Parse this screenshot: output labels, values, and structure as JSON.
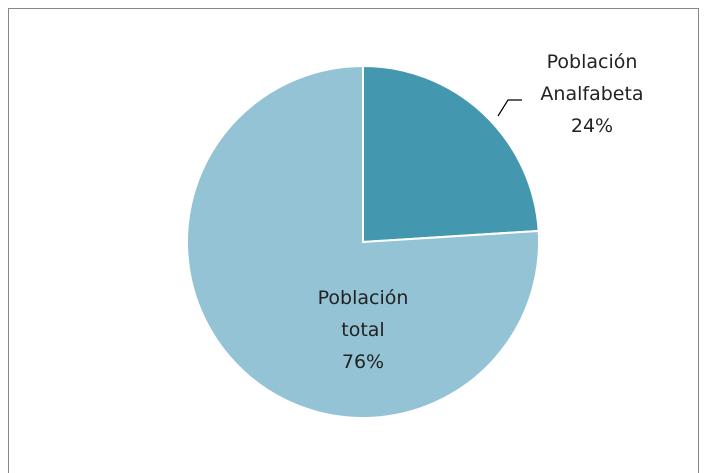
{
  "chart_data": {
    "type": "pie",
    "categories": [
      "Población Analfabeta",
      "Población total"
    ],
    "values": [
      24,
      76
    ],
    "value_labels": [
      "24%",
      "76%"
    ],
    "colors": [
      "#4398b0",
      "#93c3d5"
    ]
  }
}
